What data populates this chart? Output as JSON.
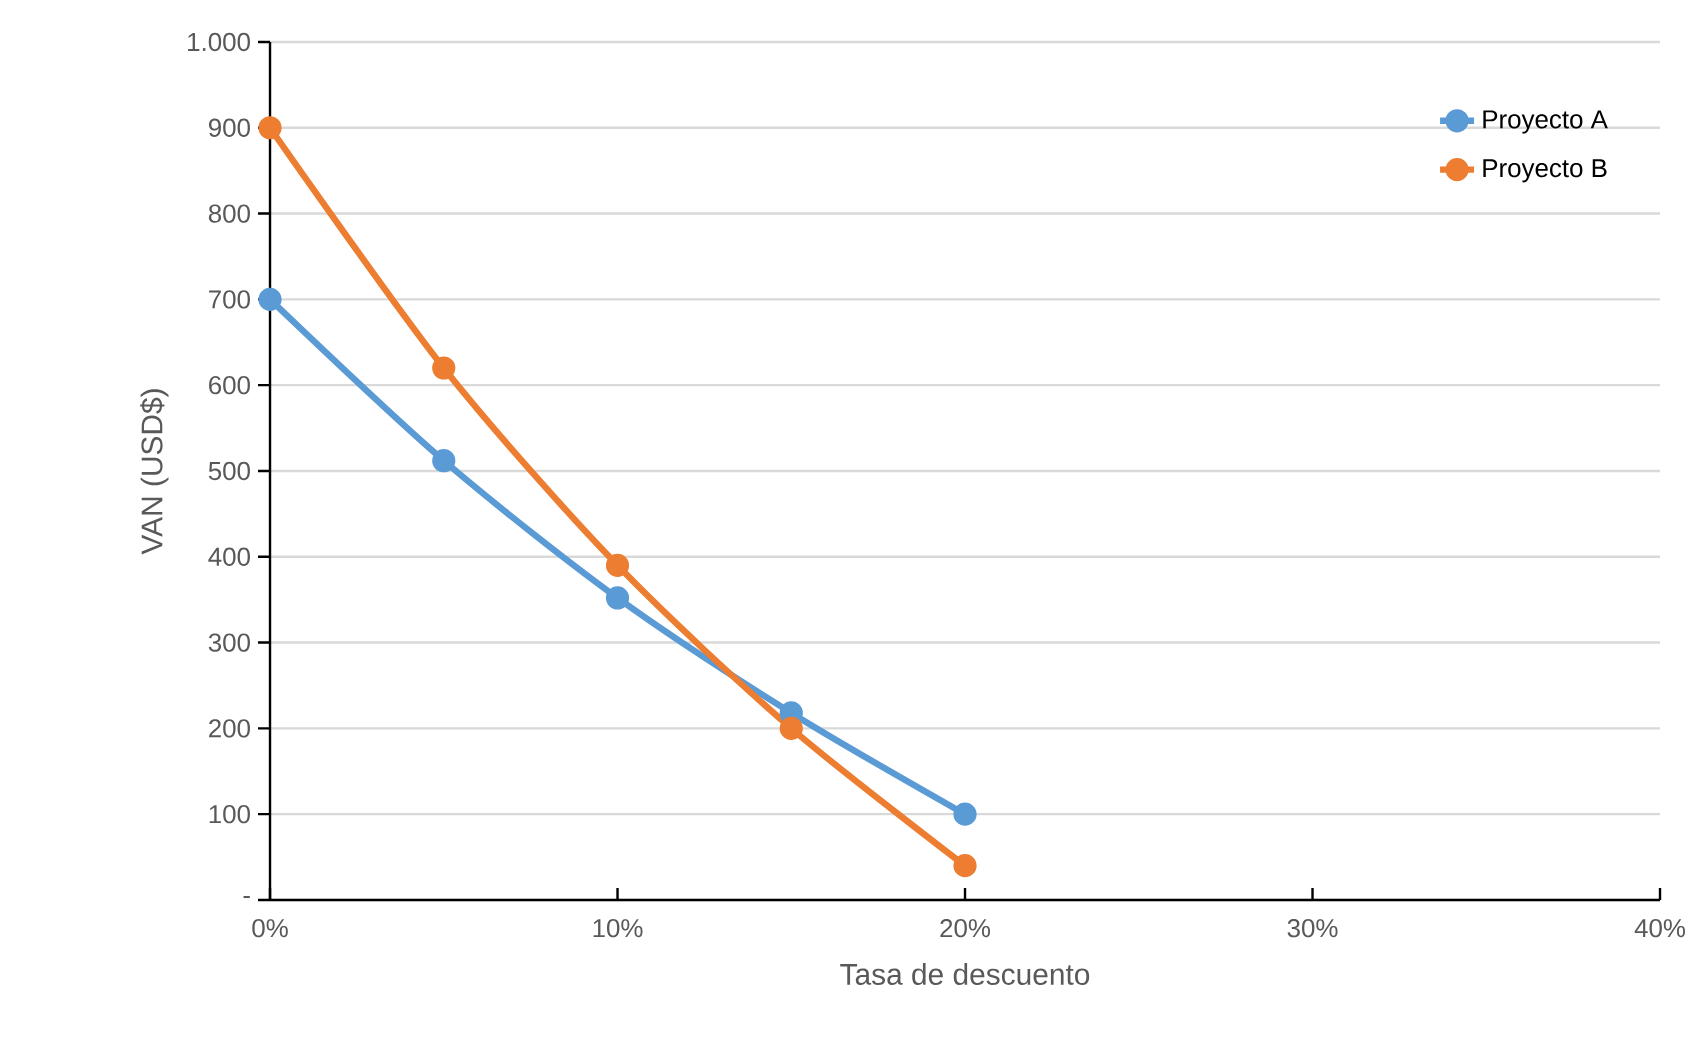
{
  "chart_data": {
    "type": "line",
    "xlabel": "Tasa de descuento",
    "ylabel": "VAN (USD$)",
    "x": [
      0,
      5,
      10,
      15,
      20
    ],
    "series": [
      {
        "name": "Proyecto A",
        "color": "#5b9bd5",
        "values": [
          700,
          512,
          352,
          218,
          100
        ]
      },
      {
        "name": "Proyecto B",
        "color": "#ed7d31",
        "values": [
          900,
          620,
          390,
          200,
          40
        ]
      }
    ],
    "xlim": [
      0,
      40
    ],
    "xticks": [
      {
        "value": 0,
        "label": "0%"
      },
      {
        "value": 10,
        "label": "10%"
      },
      {
        "value": 20,
        "label": "20%"
      },
      {
        "value": 30,
        "label": "30%"
      },
      {
        "value": 40,
        "label": "40%"
      }
    ],
    "ylim": [
      0,
      1000
    ],
    "yticks": [
      {
        "value": 0,
        "label": "-"
      },
      100,
      200,
      300,
      400,
      500,
      600,
      700,
      800,
      900,
      {
        "value": 1000,
        "label": "1.000"
      }
    ],
    "grid": "y",
    "legend": "top right",
    "marker": "circle",
    "line_style": "solid"
  }
}
